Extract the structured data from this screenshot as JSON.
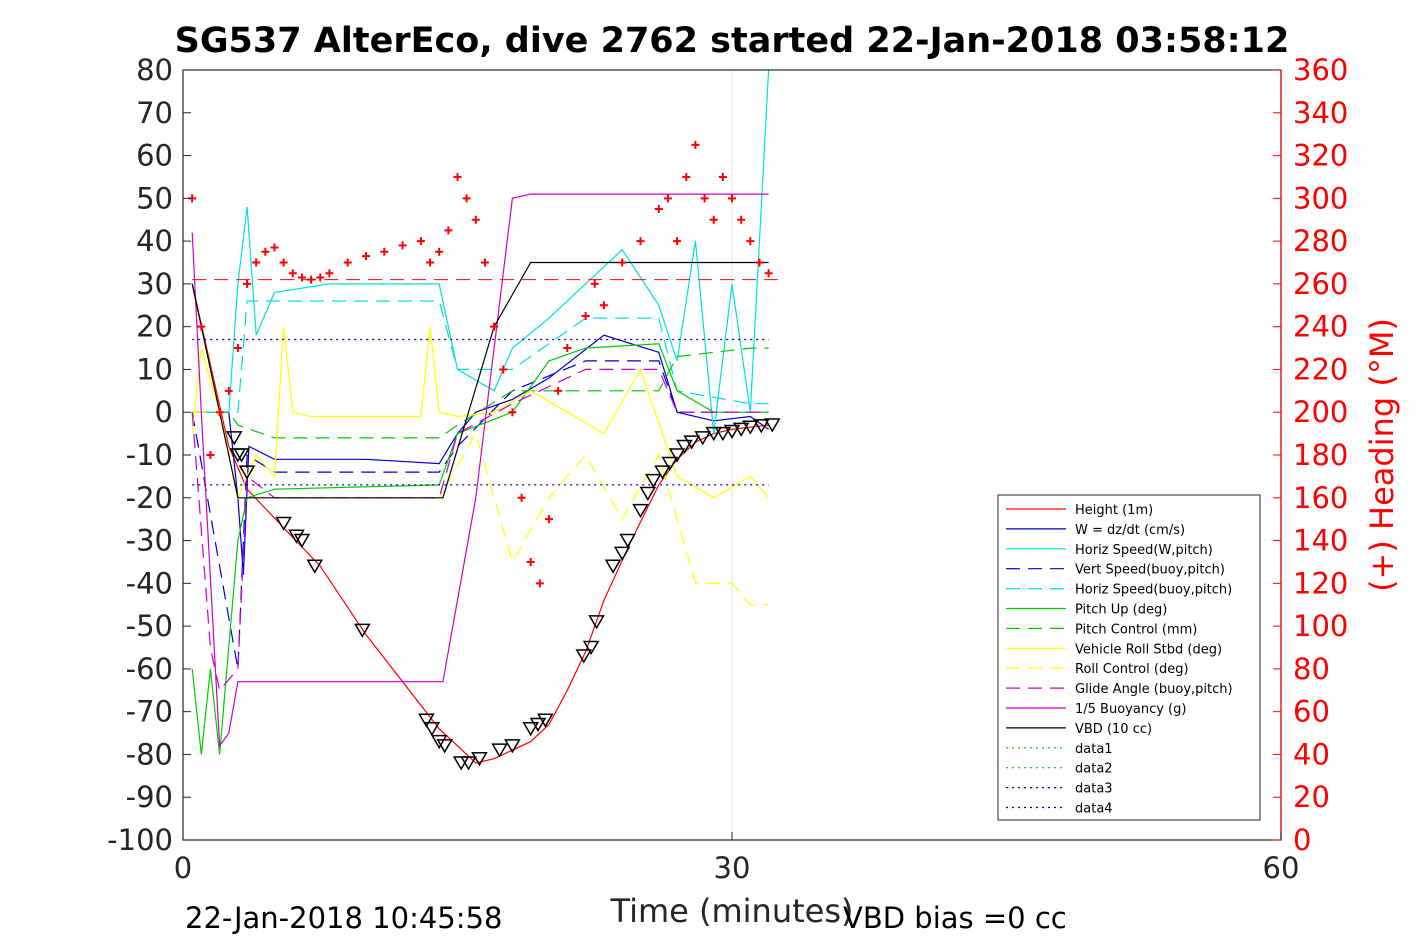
{
  "chart_data": {
    "type": "line",
    "title": "SG537 AlterEco, dive 2762 started 22-Jan-2018 03:58:12",
    "xlabel": "Time (minutes)",
    "ylabel_right": "(+) Heading (°M)",
    "footer_left": "22-Jan-2018 10:45:58",
    "footer_right": "VBD bias =0 cc",
    "xlim": [
      0,
      60
    ],
    "ylim": [
      -100,
      80
    ],
    "y2lim": [
      0,
      360
    ],
    "x_ticks": [
      0,
      30,
      60
    ],
    "y_ticks": [
      80,
      70,
      60,
      50,
      40,
      30,
      20,
      10,
      0,
      -10,
      -20,
      -30,
      -40,
      -50,
      -60,
      -70,
      -80,
      -90,
      -100
    ],
    "y2_ticks": [
      360,
      340,
      320,
      300,
      280,
      260,
      240,
      220,
      200,
      180,
      160,
      140,
      120,
      100,
      80,
      60,
      40,
      20,
      0
    ],
    "grid": "x only",
    "legend_position": "bottom-right",
    "colors": {
      "right_axis": "#ff0000"
    },
    "series": [
      {
        "name": "Height (1m)",
        "color": "#ff0000",
        "style": "solid",
        "x": [
          0.5,
          2.5,
          3.5,
          5.5,
          7.5,
          10,
          12,
          14,
          15.5,
          16,
          17,
          19,
          20,
          21,
          22,
          23,
          24.5,
          26,
          27,
          28,
          29,
          30,
          31,
          32
        ],
        "y": [
          30,
          -8,
          -18,
          -27,
          -36,
          -52,
          -63,
          -74,
          -80,
          -82,
          -81,
          -77,
          -73,
          -65,
          -56,
          -44,
          -30,
          -17,
          -11,
          -7,
          -5,
          -4,
          -3.5,
          -3
        ]
      },
      {
        "name": "W = dz/dt (cm/s)",
        "color": "#0000cc",
        "style": "solid",
        "x": [
          0.5,
          2.5,
          3,
          3.3,
          3.6,
          5,
          10,
          14,
          15,
          16,
          18,
          20,
          23,
          26,
          27,
          29,
          31,
          32
        ],
        "y": [
          0,
          0,
          -20,
          -38,
          -8,
          -11,
          -11,
          -12,
          -5,
          0,
          3,
          8,
          18,
          14,
          0,
          -2,
          -1,
          -4
        ]
      },
      {
        "name": "Horiz Speed(W,pitch)",
        "color": "#00e0e0",
        "style": "solid",
        "x": [
          0.5,
          2.5,
          3,
          3.5,
          4,
          5,
          8,
          12,
          14,
          15,
          17,
          18,
          20,
          22,
          24,
          26,
          27,
          28,
          29,
          30,
          31,
          32
        ],
        "y": [
          0,
          0,
          30,
          48,
          18,
          28,
          30,
          30,
          30,
          10,
          5,
          15,
          22,
          30,
          38,
          25,
          12,
          40,
          -5,
          30,
          0,
          80
        ]
      },
      {
        "name": "Vert Speed(buoy,pitch)",
        "color": "#0000cc",
        "style": "dashed",
        "x": [
          0.5,
          3,
          3.5,
          5,
          14,
          15,
          18,
          22,
          26,
          27,
          31,
          32
        ],
        "y": [
          0,
          -60,
          -10,
          -14,
          -14,
          -8,
          5,
          12,
          12,
          0,
          0,
          0
        ]
      },
      {
        "name": "Horiz Speed(buoy,pitch)",
        "color": "#00e0e0",
        "style": "dashed",
        "x": [
          0.5,
          3,
          3.5,
          5,
          14,
          15,
          18,
          22,
          26,
          27,
          31,
          32
        ],
        "y": [
          0,
          0,
          26,
          26,
          26,
          10,
          10,
          22,
          22,
          5,
          2,
          2
        ]
      },
      {
        "name": "Pitch Up (deg)",
        "color": "#00cc00",
        "style": "solid",
        "x": [
          0.5,
          1,
          1.5,
          2,
          3,
          3.5,
          5,
          14,
          15,
          18,
          20,
          22,
          26,
          27,
          29,
          31,
          32
        ],
        "y": [
          -60,
          -80,
          -60,
          -80,
          -30,
          -20,
          -18,
          -17,
          -5,
          0,
          12,
          15,
          16,
          5,
          0,
          0,
          0
        ]
      },
      {
        "name": "Pitch Control (mm)",
        "color": "#00cc00",
        "style": "dashed",
        "x": [
          0.5,
          2.5,
          3,
          5,
          14,
          15,
          18,
          22,
          26,
          27,
          31,
          32
        ],
        "y": [
          0,
          0,
          -3,
          -6,
          -6,
          -3,
          5,
          5,
          5,
          13,
          15,
          15
        ]
      },
      {
        "name": "Vehicle Roll Stbd (deg)",
        "color": "#ffff00",
        "style": "solid",
        "x": [
          0.5,
          1,
          2,
          3,
          4,
          5,
          5.5,
          6,
          7,
          10,
          13,
          13.5,
          14,
          15,
          17,
          19,
          21,
          23,
          25,
          27,
          29,
          31,
          32
        ],
        "y": [
          -5,
          15,
          0,
          -20,
          -10,
          -15,
          20,
          0,
          -1,
          -1,
          -1,
          20,
          0,
          -1,
          0,
          5,
          0,
          -5,
          10,
          -15,
          -20,
          -15,
          -20
        ]
      },
      {
        "name": "Roll Control (deg)",
        "color": "#ffff00",
        "style": "dashed",
        "x": [
          0.5,
          2,
          3,
          5,
          14,
          16,
          18,
          20,
          22,
          24,
          26,
          28,
          30,
          31,
          32
        ],
        "y": [
          0,
          0,
          -20,
          -20,
          -20,
          -5,
          -35,
          -20,
          -10,
          -25,
          -10,
          -40,
          -40,
          -45,
          -45
        ]
      },
      {
        "name": "Glide Angle (buoy,pitch)",
        "color": "#cc00cc",
        "style": "dashed",
        "x": [
          0.5,
          1.5,
          2,
          3,
          3.5,
          5,
          14,
          15,
          18,
          22,
          26,
          27,
          31,
          32
        ],
        "y": [
          0,
          -55,
          -65,
          -60,
          -15,
          -20,
          -20,
          -5,
          2,
          10,
          10,
          0,
          0,
          0
        ]
      },
      {
        "name": "1/5 Buoyancy (g)",
        "color": "#cc00cc",
        "style": "solid",
        "x": [
          0.5,
          1,
          2,
          2.5,
          3,
          14,
          14.2,
          16,
          18,
          19,
          25,
          26,
          27,
          28,
          32
        ],
        "y": [
          42,
          0,
          -78,
          -75,
          -63,
          -63,
          -63,
          -20,
          50,
          51,
          51,
          51,
          51,
          51,
          51
        ]
      },
      {
        "name": "VBD (10 cc)",
        "color": "#000000",
        "style": "solid",
        "x": [
          0.5,
          2,
          3,
          14,
          14.2,
          17,
          19,
          26,
          32
        ],
        "y": [
          30,
          0,
          -20,
          -20,
          -20,
          20,
          35,
          35,
          35
        ]
      },
      {
        "name": "data1",
        "color": "#00cc00",
        "style": "dotted",
        "x": [],
        "y": []
      },
      {
        "name": "data2",
        "color": "#00cc00",
        "style": "dotted",
        "x": [],
        "y": []
      },
      {
        "name": "data3",
        "color": "#000099",
        "style": "dotted",
        "x": [
          0.5,
          32
        ],
        "y": [
          -17,
          -17
        ]
      },
      {
        "name": "data4",
        "color": "#000099",
        "style": "dotted",
        "x": [
          0.5,
          32
        ],
        "y": [
          17,
          17
        ]
      }
    ],
    "heading_points": {
      "name": "Heading (+)",
      "color": "#ff0000",
      "axis": "right",
      "x": [
        0.5,
        1,
        1.5,
        2,
        2.5,
        3,
        3.5,
        4,
        4.5,
        5,
        5.5,
        6,
        6.5,
        7,
        7.5,
        8,
        9,
        10,
        11,
        12,
        13,
        13.5,
        14,
        14.5,
        15,
        15.5,
        16,
        16.5,
        17,
        17.5,
        18,
        18.5,
        19,
        19.5,
        20,
        20.5,
        21,
        22,
        22.5,
        23,
        24,
        25,
        26,
        26.5,
        27,
        27.5,
        28,
        28.5,
        29,
        29.5,
        30,
        30.5,
        31,
        31.5,
        32
      ],
      "y": [
        300,
        240,
        180,
        200,
        210,
        230,
        260,
        270,
        275,
        277,
        270,
        265,
        263,
        262,
        263,
        265,
        270,
        273,
        275,
        278,
        280,
        270,
        275,
        285,
        310,
        300,
        290,
        270,
        240,
        220,
        200,
        160,
        130,
        120,
        150,
        210,
        230,
        245,
        260,
        250,
        270,
        280,
        295,
        300,
        280,
        310,
        325,
        300,
        290,
        310,
        300,
        290,
        280,
        270,
        265
      ]
    },
    "reference_lines": [
      {
        "name": "heading reference",
        "color": "#ff0000",
        "style": "dashed",
        "axis": "right",
        "value": 262
      }
    ],
    "triangle_markers": {
      "name": "depth samples",
      "color": "#000000",
      "x": [
        2.8,
        3,
        3.2,
        3.5,
        5.5,
        6.2,
        6.5,
        7.2,
        9.8,
        13.3,
        13.6,
        14,
        14.3,
        15.2,
        15.6,
        16.2,
        17.3,
        18,
        19,
        19.4,
        19.8,
        21.9,
        22.3,
        22.6,
        23.5,
        24,
        24.3,
        25,
        25.4,
        25.7,
        26.2,
        26.6,
        27,
        27.4,
        27.8,
        28.4,
        29,
        29.5,
        30,
        30.5,
        31,
        31.6,
        32.2
      ],
      "y": [
        -6,
        -10,
        -10,
        -14,
        -26,
        -29,
        -30,
        -36,
        -51,
        -72,
        -74,
        -77,
        -78,
        -82,
        -82,
        -81,
        -79,
        -78,
        -74,
        -73,
        -72,
        -57,
        -55,
        -49,
        -36,
        -33,
        -30,
        -23,
        -19,
        -16,
        -14,
        -12,
        -10,
        -8,
        -7,
        -6,
        -5,
        -5,
        -4.5,
        -4,
        -3.5,
        -3.2,
        -3
      ]
    }
  }
}
